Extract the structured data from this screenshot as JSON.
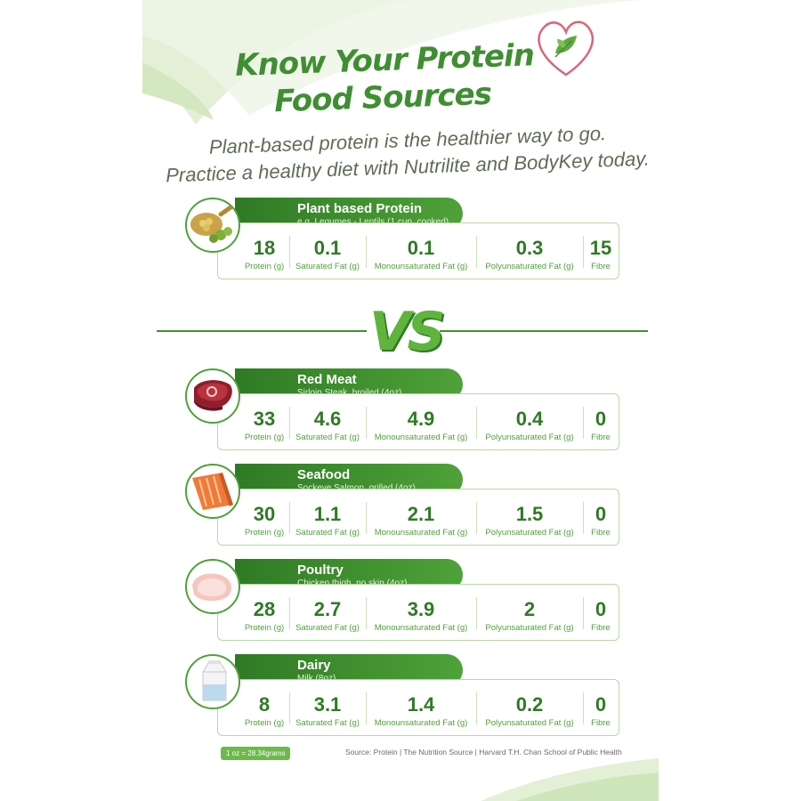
{
  "title": {
    "line1": "Know Your Protein",
    "line2": "Food Sources"
  },
  "subtitle": {
    "line1": "Plant-based protein is the healthier way to go.",
    "line2": "Practice a healthy diet with Nutrilite and BodyKey today."
  },
  "vs_label": "VS",
  "columns": {
    "protein": "Protein (g)",
    "saturated": "Saturated Fat (g)",
    "mono": "Monounsaturated Fat (g)",
    "poly": "Polyunsaturated Fat (g)",
    "fibre": "Fibre"
  },
  "foods": [
    {
      "name": "Plant based Protein",
      "example": "e.g. Legumes - Lentils (1 cup, cooked)",
      "icon": "lentils-icon",
      "protein": "18",
      "saturated": "0.1",
      "mono": "0.1",
      "poly": "0.3",
      "fibre": "15"
    },
    {
      "name": "Red Meat",
      "example": "Sirloin Steak, broiled (4oz)",
      "icon": "steak-icon",
      "protein": "33",
      "saturated": "4.6",
      "mono": "4.9",
      "poly": "0.4",
      "fibre": "0"
    },
    {
      "name": "Seafood",
      "example": "Sockeye Salmon, grilled (4oz)",
      "icon": "salmon-icon",
      "protein": "30",
      "saturated": "1.1",
      "mono": "2.1",
      "poly": "1.5",
      "fibre": "0"
    },
    {
      "name": "Poultry",
      "example": "Chicken thigh, no skin (4oz)",
      "icon": "chicken-icon",
      "protein": "28",
      "saturated": "2.7",
      "mono": "3.9",
      "poly": "2",
      "fibre": "0"
    },
    {
      "name": "Dairy",
      "example": "Milk (8oz)",
      "icon": "milk-carton-icon",
      "protein": "8",
      "saturated": "3.1",
      "mono": "1.4",
      "poly": "0.2",
      "fibre": "0"
    }
  ],
  "footnote": "1 oz = 28.34grams",
  "source": "Source: Protein | The Nutrition Source | Harvard T.H. Chan School of Public Health",
  "colors": {
    "brand_green": "#3f8f32",
    "light_green": "#6db94a",
    "heart_pink": "#d9667a"
  }
}
